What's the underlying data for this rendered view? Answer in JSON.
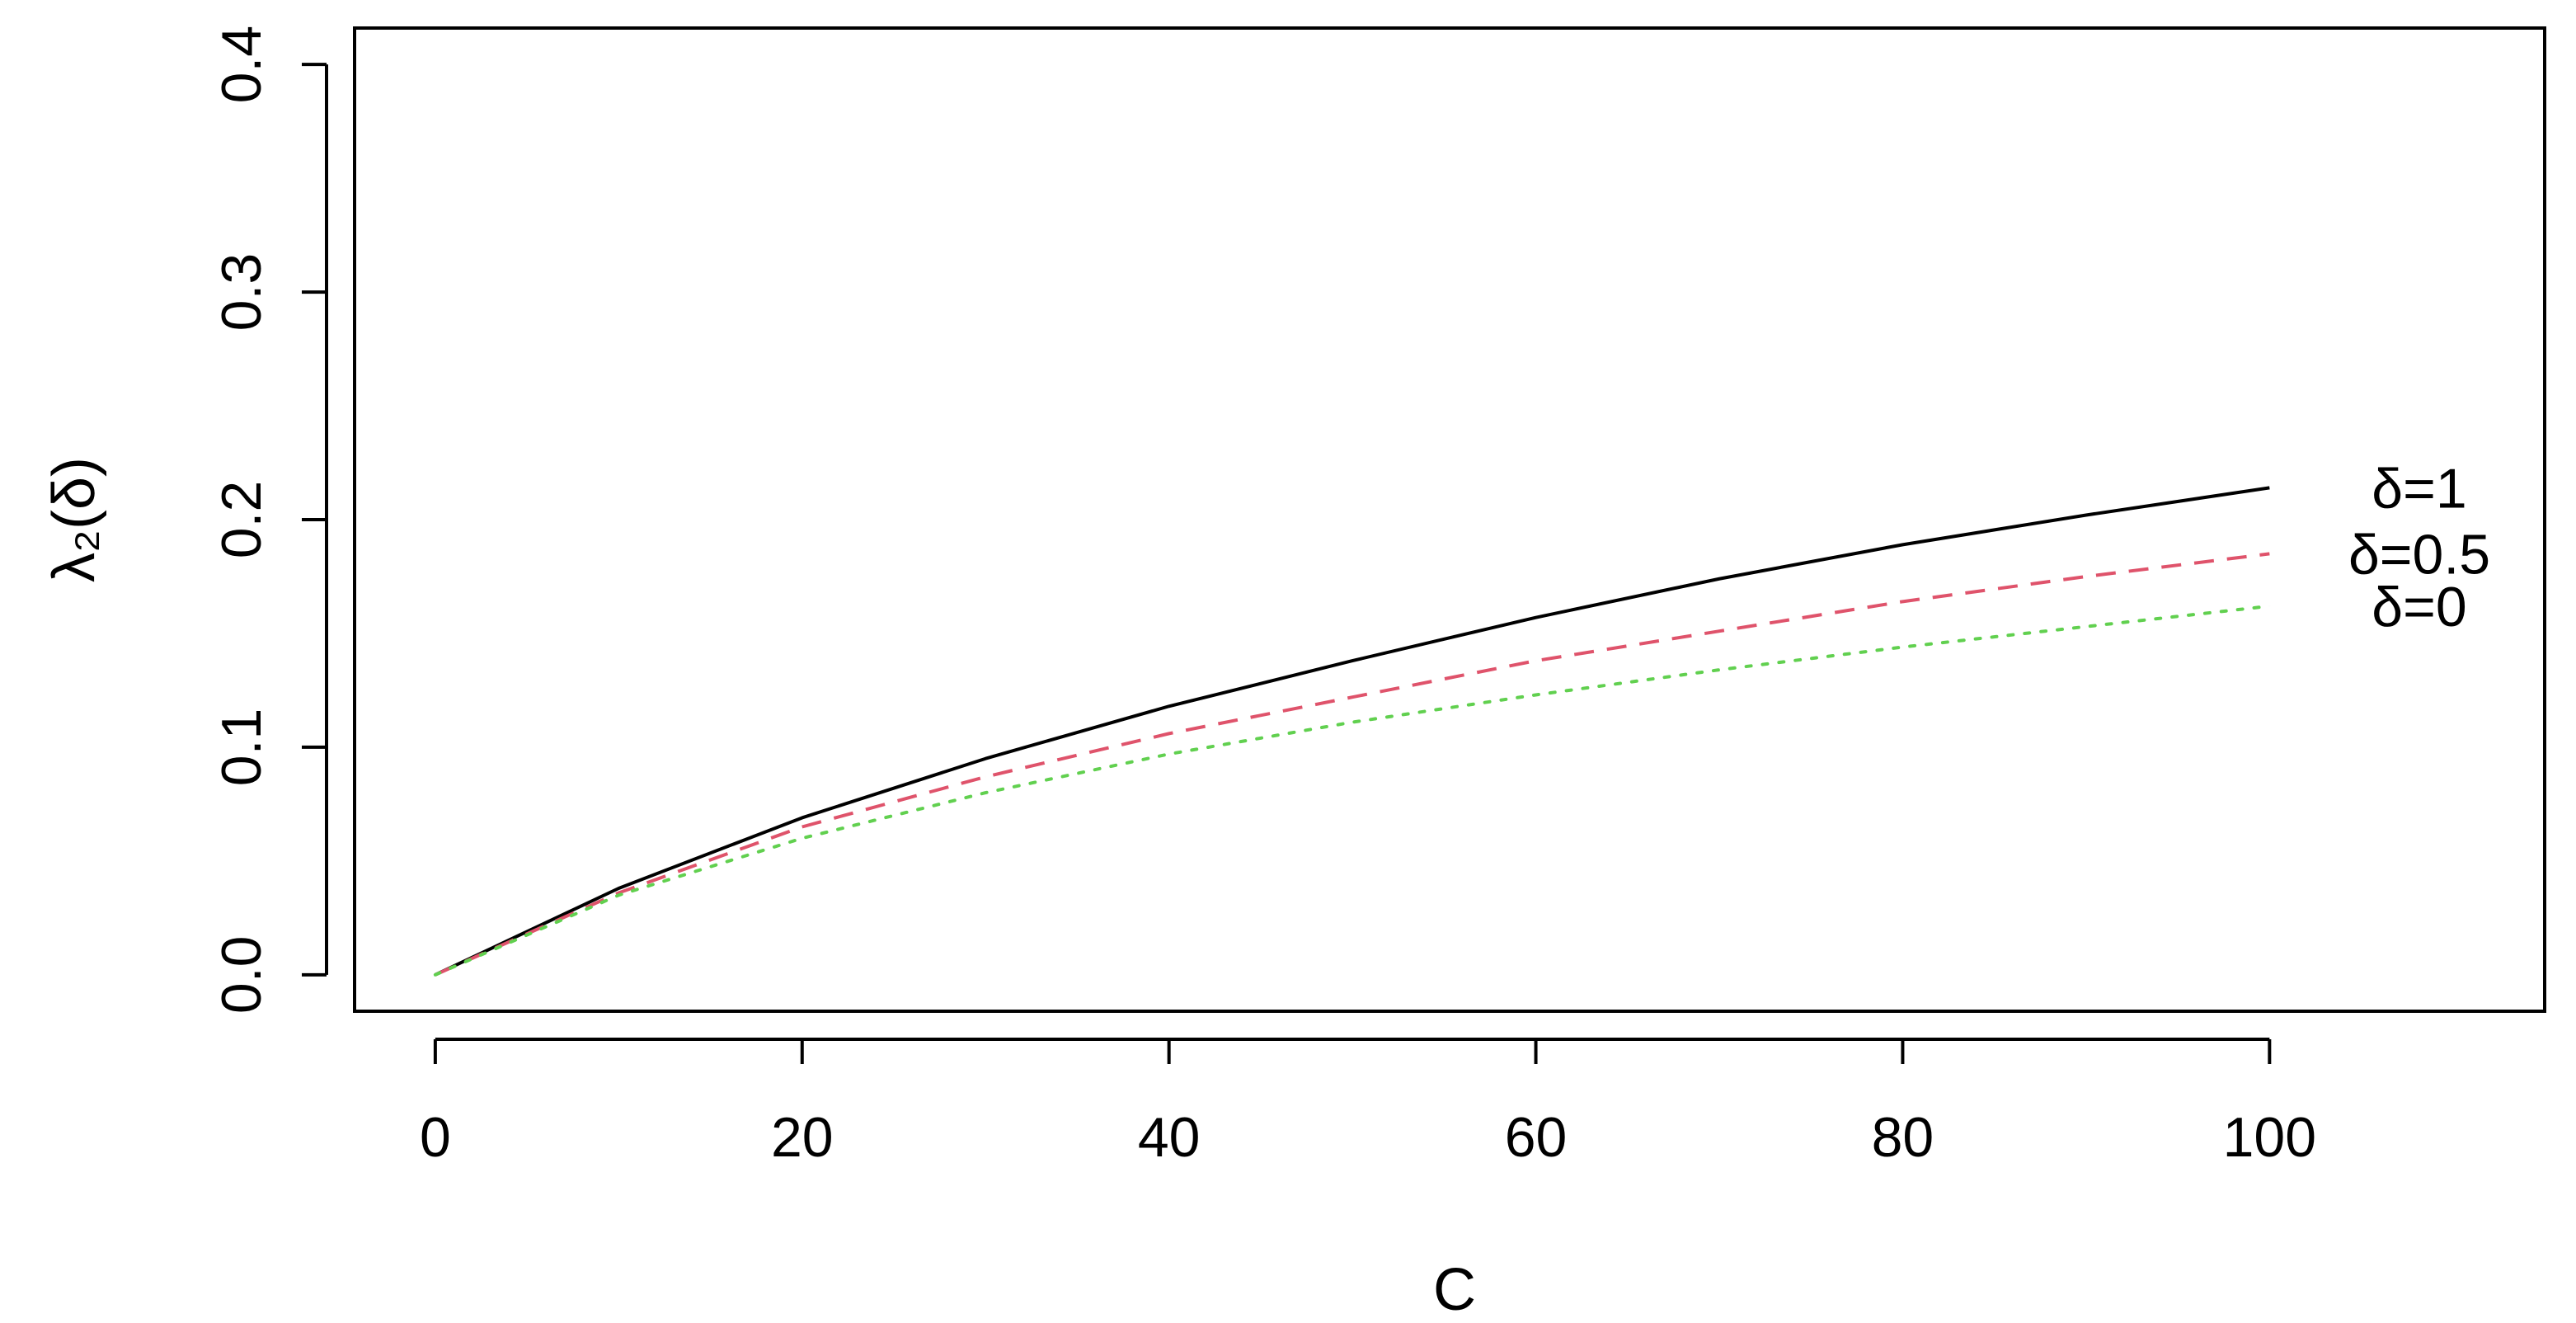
{
  "chart_data": {
    "type": "line",
    "xlabel": "C",
    "ylabel": "λ₂(δ)",
    "xlim": [
      -4.4,
      115
    ],
    "ylim": [
      -0.016,
      0.416
    ],
    "xticks": [
      0,
      20,
      40,
      60,
      80,
      100
    ],
    "yticks": [
      0.0,
      0.1,
      0.2,
      0.3,
      0.4
    ],
    "xtick_labels": [
      "0",
      "20",
      "40",
      "60",
      "80",
      "100"
    ],
    "ytick_labels": [
      "0.0",
      "0.1",
      "0.2",
      "0.3",
      "0.4"
    ],
    "grid": false,
    "legend": "labels at right end of curves",
    "x": [
      0,
      10,
      20,
      30,
      40,
      50,
      60,
      70,
      80,
      90,
      100
    ],
    "series": [
      {
        "name": "δ=1",
        "color": "#000000",
        "style": "solid",
        "values": [
          0.0,
          0.038,
          0.069,
          0.095,
          0.118,
          0.138,
          0.157,
          0.174,
          0.189,
          0.202,
          0.214
        ]
      },
      {
        "name": "δ=0.5",
        "color": "#DF536B",
        "style": "dashed",
        "values": [
          0.0,
          0.036,
          0.065,
          0.087,
          0.106,
          0.122,
          0.138,
          0.151,
          0.164,
          0.175,
          0.185
        ]
      },
      {
        "name": "δ=0",
        "color": "#61D04F",
        "style": "dotted",
        "values": [
          0.0,
          0.035,
          0.06,
          0.08,
          0.097,
          0.111,
          0.123,
          0.134,
          0.144,
          0.153,
          0.162
        ]
      }
    ]
  }
}
